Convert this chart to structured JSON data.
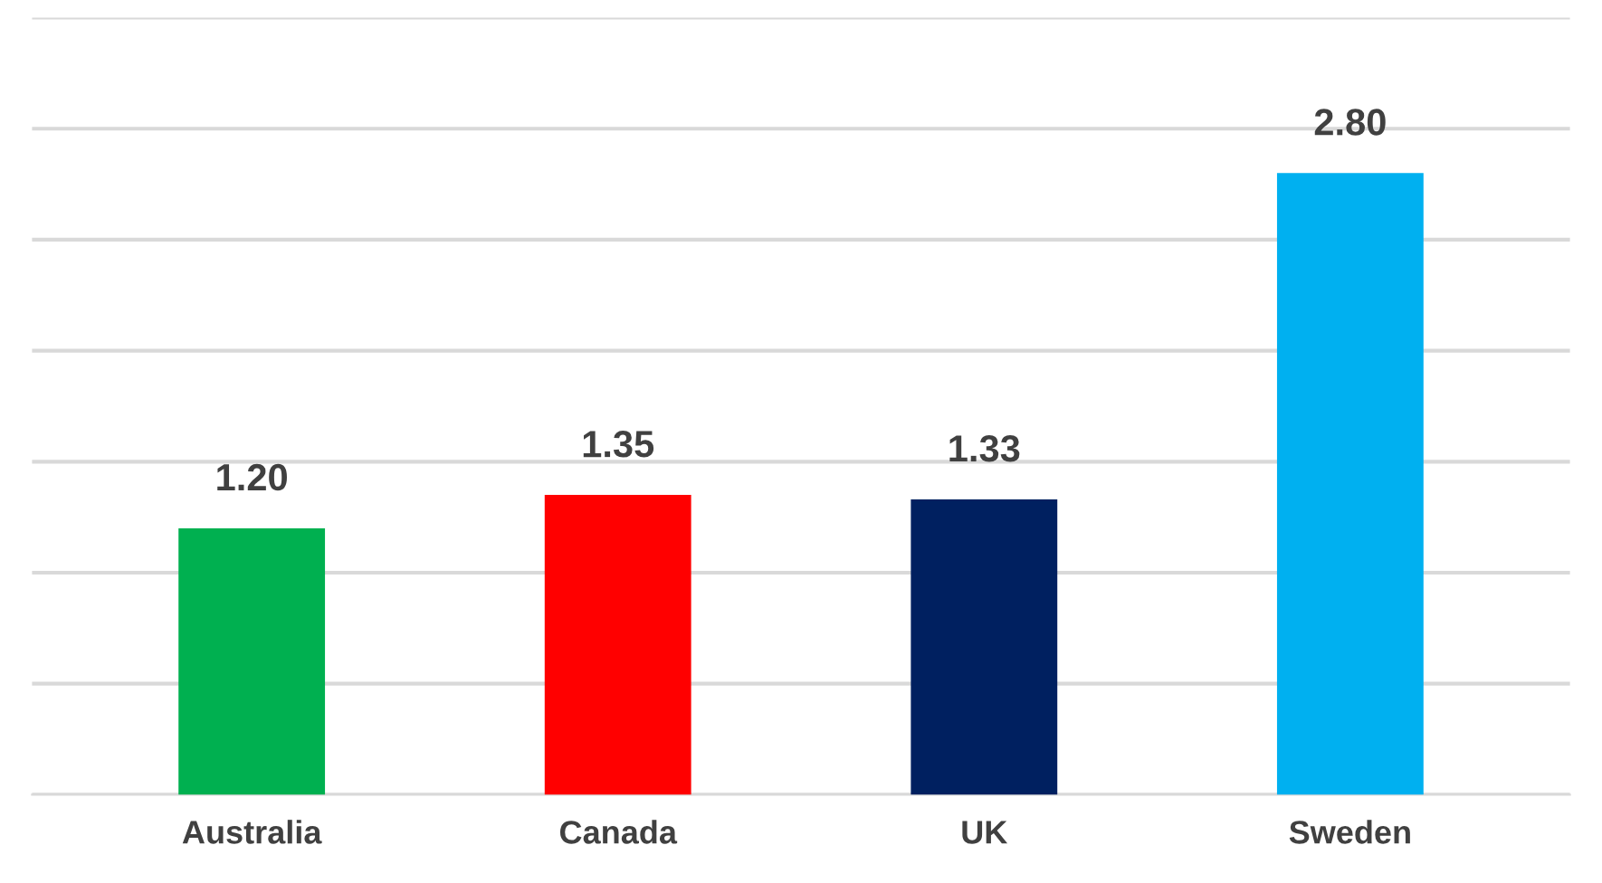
{
  "chart_data": {
    "type": "bar",
    "categories": [
      "Australia",
      "Canada",
      "UK",
      "Sweden"
    ],
    "values": [
      1.2,
      1.35,
      1.33,
      2.8
    ],
    "colors": [
      "#00b050",
      "#ff0000",
      "#002060",
      "#00b0f0"
    ],
    "value_labels": [
      "1.20",
      "1.35",
      "1.33",
      "2.80"
    ],
    "ylim": [
      0,
      3.5
    ],
    "yticks": [
      {
        "value": 0,
        "label": null
      },
      {
        "value": 0.5,
        "label": null
      },
      {
        "value": 1.0,
        "label": null
      },
      {
        "value": 1.5,
        "label": null
      },
      {
        "value": 2.0,
        "label": null
      },
      {
        "value": 2.5,
        "label": null
      },
      {
        "value": 3.0,
        "label": null
      },
      {
        "value": 3.5,
        "label": null
      }
    ],
    "grid": "y",
    "tick_labels": "x"
  }
}
